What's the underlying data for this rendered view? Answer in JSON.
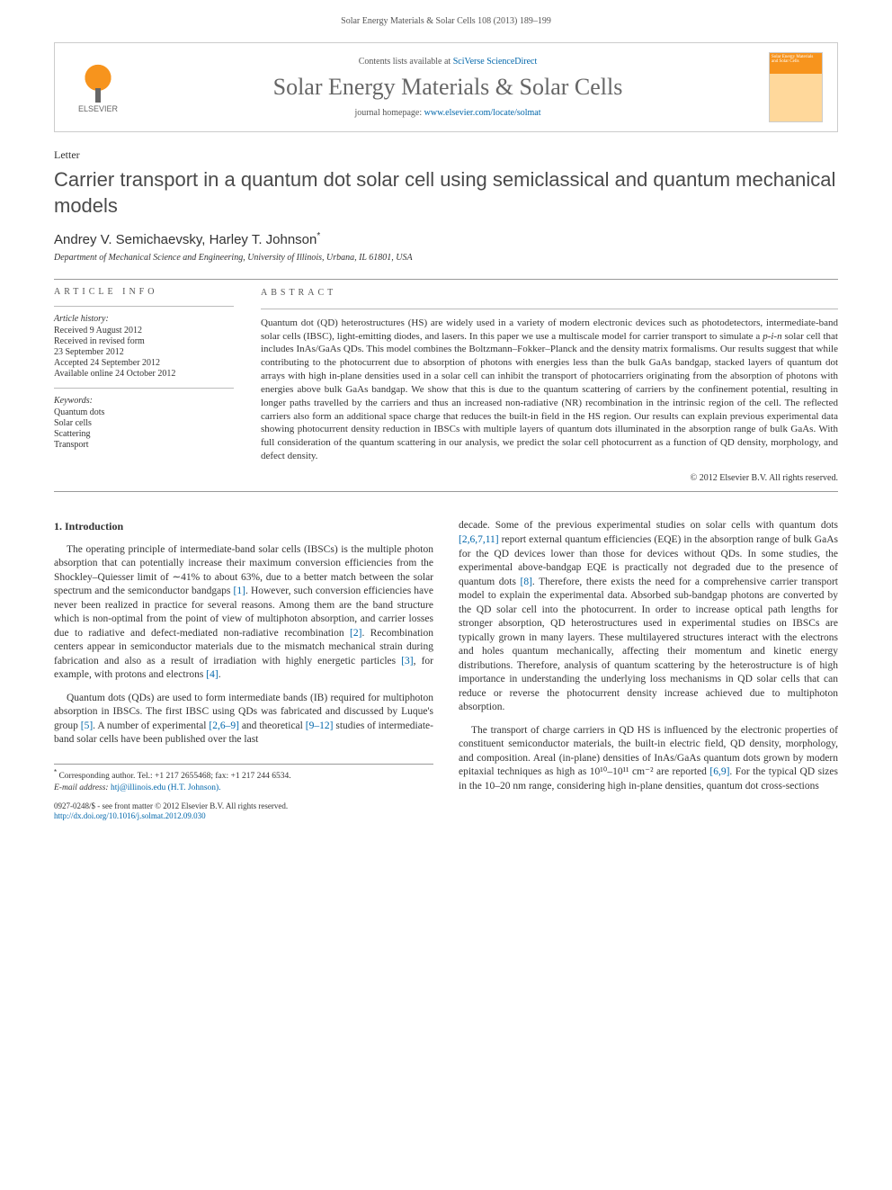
{
  "header": {
    "citation": "Solar Energy Materials & Solar Cells 108 (2013) 189–199",
    "contents_available": "Contents lists available at",
    "contents_link_text": "SciVerse ScienceDirect",
    "journal_name": "Solar Energy Materials & Solar Cells",
    "homepage_label": "journal homepage:",
    "homepage_url": "www.elsevier.com/locate/solmat",
    "elsevier_label": "ELSEVIER",
    "cover_text": "Solar Energy Materials and Solar Cells"
  },
  "article": {
    "type_label": "Letter",
    "title": "Carrier transport in a quantum dot solar cell using semiclassical and quantum mechanical models",
    "authors": "Andrey V. Semichaevsky, Harley T. Johnson",
    "corr_marker": "*",
    "affiliation": "Department of Mechanical Science and Engineering, University of Illinois, Urbana, IL 61801, USA"
  },
  "info": {
    "heading": "article info",
    "history_label": "Article history:",
    "received": "Received 9 August 2012",
    "revised1": "Received in revised form",
    "revised2": "23 September 2012",
    "accepted": "Accepted 24 September 2012",
    "online": "Available online 24 October 2012",
    "keywords_label": "Keywords:",
    "kw1": "Quantum dots",
    "kw2": "Solar cells",
    "kw3": "Scattering",
    "kw4": "Transport"
  },
  "abstract": {
    "heading": "abstract",
    "text": "Quantum dot (QD) heterostructures (HS) are widely used in a variety of modern electronic devices such as photodetectors, intermediate-band solar cells (IBSC), light-emitting diodes, and lasers. In this paper we use a multiscale model for carrier transport to simulate a p-i-n solar cell that includes InAs/GaAs QDs. This model combines the Boltzmann–Fokker–Planck and the density matrix formalisms. Our results suggest that while contributing to the photocurrent due to absorption of photons with energies less than the bulk GaAs bandgap, stacked layers of quantum dot arrays with high in-plane densities used in a solar cell can inhibit the transport of photocarriers originating from the absorption of photons with energies above bulk GaAs bandgap. We show that this is due to the quantum scattering of carriers by the confinement potential, resulting in longer paths travelled by the carriers and thus an increased non-radiative (NR) recombination in the intrinsic region of the cell. The reflected carriers also form an additional space charge that reduces the built-in field in the HS region. Our results can explain previous experimental data showing photocurrent density reduction in IBSCs with multiple layers of quantum dots illuminated in the absorption range of bulk GaAs. With full consideration of the quantum scattering in our analysis, we predict the solar cell photocurrent as a function of QD density, morphology, and defect density.",
    "copyright": "© 2012 Elsevier B.V. All rights reserved."
  },
  "body": {
    "section1_heading": "1. Introduction",
    "col1_p1": "The operating principle of intermediate-band solar cells (IBSCs) is the multiple photon absorption that can potentially increase their maximum conversion efficiencies from the Shockley–Quiesser limit of ∼41% to about 63%, due to a better match between the solar spectrum and the semiconductor bandgaps [1]. However, such conversion efficiencies have never been realized in practice for several reasons. Among them are the band structure which is non-optimal from the point of view of multiphoton absorption, and carrier losses due to radiative and defect-mediated non-radiative recombination [2]. Recombination centers appear in semiconductor materials due to the mismatch mechanical strain during fabrication and also as a result of irradiation with highly energetic particles [3], for example, with protons and electrons [4].",
    "col1_p2": "Quantum dots (QDs) are used to form intermediate bands (IB) required for multiphoton absorption in IBSCs. The first IBSC using QDs was fabricated and discussed by Luque's group [5]. A number of experimental [2,6–9] and theoretical [9–12] studies of intermediate-band solar cells have been published over the last",
    "col2_p1": "decade. Some of the previous experimental studies on solar cells with quantum dots [2,6,7,11] report external quantum efficiencies (EQE) in the absorption range of bulk GaAs for the QD devices lower than those for devices without QDs. In some studies, the experimental above-bandgap EQE is practically not degraded due to the presence of quantum dots [8]. Therefore, there exists the need for a comprehensive carrier transport model to explain the experimental data. Absorbed sub-bandgap photons are converted by the QD solar cell into the photocurrent. In order to increase optical path lengths for stronger absorption, QD heterostructures used in experimental studies on IBSCs are typically grown in many layers. These multilayered structures interact with the electrons and holes quantum mechanically, affecting their momentum and kinetic energy distributions. Therefore, analysis of quantum scattering by the heterostructure is of high importance in understanding the underlying loss mechanisms in QD solar cells that can reduce or reverse the photocurrent density increase achieved due to multiphoton absorption.",
    "col2_p2": "The transport of charge carriers in QD HS is influenced by the electronic properties of constituent semiconductor materials, the built-in electric field, QD density, morphology, and composition. Areal (in-plane) densities of InAs/GaAs quantum dots grown by modern epitaxial techniques as high as 10¹⁰–10¹¹ cm⁻² are reported [6,9]. For the typical QD sizes in the 10–20 nm range, considering high in-plane densities, quantum dot cross-sections"
  },
  "footnote": {
    "corr_label": "Corresponding author. Tel.: +1 217 2655468; fax: +1 217 244 6534.",
    "email_label": "E-mail address:",
    "email": "htj@illinois.edu (H.T. Johnson)."
  },
  "bottom": {
    "issn_line": "0927-0248/$ - see front matter © 2012 Elsevier B.V. All rights reserved.",
    "doi_label": "http://dx.doi.org/10.1016/j.solmat.2012.09.030"
  },
  "refs": {
    "r1": "[1]",
    "r2": "[2]",
    "r3": "[3]",
    "r4": "[4]",
    "r5": "[5]",
    "r26_9": "[2,6–9]",
    "r9_12": "[9–12]",
    "r2_6_7_11": "[2,6,7,11]",
    "r8": "[8]",
    "r6_9": "[6,9]"
  },
  "colors": {
    "link": "#0066aa",
    "text": "#333333",
    "heading_gray": "#555555",
    "elsevier_orange": "#f7941d",
    "border": "#cccccc"
  },
  "typography": {
    "title_fontsize": 22,
    "journal_fontsize": 26,
    "body_fontsize": 11.5,
    "abstract_fontsize": 11,
    "info_fontsize": 10,
    "footnote_fontsize": 9.5
  }
}
